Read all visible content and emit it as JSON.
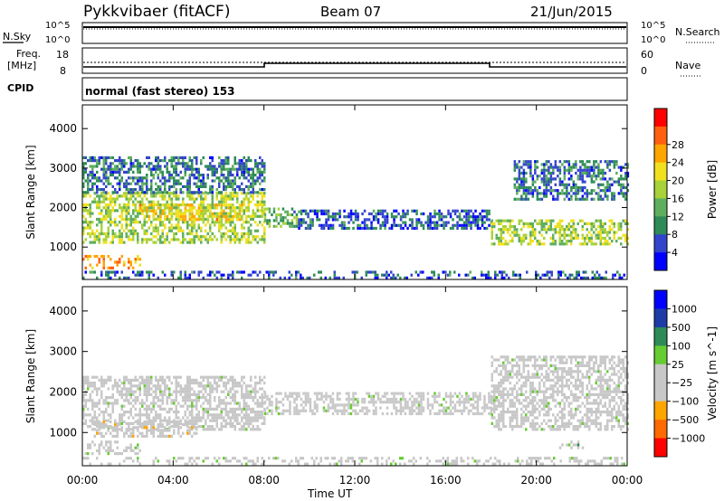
{
  "header": {
    "radar": "Pykkvibaer (fitACF)",
    "beam": "Beam 07",
    "date": "21/Jun/2015"
  },
  "nsky_panel": {
    "left_label": "N.Sky",
    "right_label": "N.Search",
    "left_ticks": [
      "10^5",
      "10^0"
    ],
    "right_ticks": [
      "10^5",
      "10^0"
    ]
  },
  "freq_panel": {
    "left_label_1": "Freq.",
    "left_label_2": "[MHz]",
    "right_label": "Nave",
    "left_ticks": [
      "18",
      "8"
    ],
    "right_ticks": [
      "60",
      "0"
    ]
  },
  "cpid": {
    "label": "CPID",
    "text": "normal (fast stereo) 153"
  },
  "time_axis": {
    "label": "Time UT",
    "ticks": [
      "00:00",
      "04:00",
      "08:00",
      "12:00",
      "16:00",
      "20:00",
      "00:00"
    ]
  },
  "colors": {
    "power": [
      "#0000ff",
      "#3344cc",
      "#2e8b57",
      "#5fae5f",
      "#a8d13a",
      "#f0e020",
      "#ffa500",
      "#ff6010",
      "#ff0000"
    ],
    "velocity": [
      "#ff0000",
      "#ff6a00",
      "#ffa500",
      "#c8c8c8",
      "#c8c8c8",
      "#66cc33",
      "#2e8b57",
      "#1e3ca8",
      "#0000ff"
    ],
    "ground_scatter": "#c8c8c8"
  },
  "chart_data": [
    {
      "type": "heatmap",
      "title": "",
      "xlabel": "Time UT",
      "ylabel": "Slant Range [km]",
      "xlim": [
        "00:00",
        "24:00"
      ],
      "ylim": [
        180,
        4600
      ],
      "yticks": [
        "1000",
        "2000",
        "3000",
        "4000"
      ],
      "colorbar": {
        "label": "Power [dB]",
        "range": [
          0,
          32
        ],
        "ticks": [
          "4",
          "8",
          "12",
          "16",
          "20",
          "24",
          "28"
        ]
      },
      "scatter_regions": [
        {
          "t_start": "00:00",
          "t_end": "02:30",
          "range_km": [
            500,
            800
          ],
          "power_db": 24
        },
        {
          "t_start": "00:00",
          "t_end": "08:00",
          "range_km": [
            1100,
            2400
          ],
          "power_db": 16
        },
        {
          "t_start": "02:30",
          "t_end": "07:00",
          "range_km": [
            1700,
            2100
          ],
          "power_db": 20
        },
        {
          "t_start": "00:00",
          "t_end": "08:00",
          "range_km": [
            2400,
            3300
          ],
          "power_db": 8
        },
        {
          "t_start": "08:00",
          "t_end": "09:30",
          "range_km": [
            1500,
            2000
          ],
          "power_db": 12
        },
        {
          "t_start": "09:30",
          "t_end": "18:00",
          "range_km": [
            1450,
            1950
          ],
          "power_db": 6
        },
        {
          "t_start": "18:00",
          "t_end": "24:00",
          "range_km": [
            1100,
            1700
          ],
          "power_db": 16
        },
        {
          "t_start": "19:00",
          "t_end": "24:00",
          "range_km": [
            2200,
            3200
          ],
          "power_db": 8
        },
        {
          "t_start": "00:00",
          "t_end": "24:00",
          "range_km": [
            200,
            400
          ],
          "power_db": 6
        }
      ]
    },
    {
      "type": "heatmap",
      "title": "",
      "xlabel": "Time UT",
      "ylabel": "Slant Range [km]",
      "xlim": [
        "00:00",
        "24:00"
      ],
      "ylim": [
        180,
        4600
      ],
      "yticks": [
        "1000",
        "2000",
        "3000",
        "4000"
      ],
      "colorbar": {
        "label": "Velocity [m s^-1]",
        "range": [
          -1200,
          1200
        ],
        "ticks": [
          "1000",
          "500",
          "100",
          "25",
          "−25",
          "−100",
          "−500",
          "−1000"
        ]
      },
      "scatter_regions": [
        {
          "t_start": "00:00",
          "t_end": "02:30",
          "range_km": [
            500,
            800
          ],
          "velocity_ms": 0
        },
        {
          "t_start": "00:00",
          "t_end": "08:00",
          "range_km": [
            1100,
            2400
          ],
          "velocity_ms": 0
        },
        {
          "t_start": "00:30",
          "t_end": "05:00",
          "range_km": [
            900,
            1300
          ],
          "velocity_ms": -300
        },
        {
          "t_start": "08:00",
          "t_end": "18:00",
          "range_km": [
            1450,
            2000
          ],
          "velocity_ms": 0
        },
        {
          "t_start": "18:00",
          "t_end": "24:00",
          "range_km": [
            1100,
            2900
          ],
          "velocity_ms": 0
        },
        {
          "t_start": "21:00",
          "t_end": "22:00",
          "range_km": [
            650,
            800
          ],
          "velocity_ms": 300
        },
        {
          "t_start": "00:00",
          "t_end": "24:00",
          "range_km": [
            200,
            400
          ],
          "velocity_ms": 100
        }
      ]
    }
  ]
}
